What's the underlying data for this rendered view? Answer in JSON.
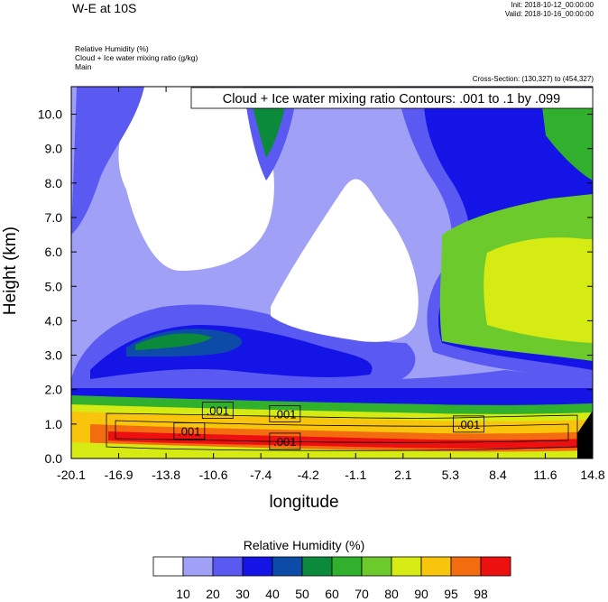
{
  "header": {
    "title": "W-E at 10S",
    "init": "Init: 2018-10-12_00:00:00",
    "valid": "Valid: 2018-10-16_00:00:00",
    "fields": [
      "Relative Humidity   (%)",
      "Cloud + Ice water mixing ratio   (g/kg)",
      "Main"
    ],
    "cross_section": "Cross-Section: (130,327) to (454,327)"
  },
  "chart_data": {
    "type": "heatmap",
    "title": "Cloud + Ice water mixing ratio Contours: .001 to .1 by .099",
    "xlabel": "longitude",
    "ylabel": "Height (km)",
    "x_ticks": [
      "-20.1",
      "-16.9",
      "-13.8",
      "-10.6",
      "-7.4",
      "-4.2",
      "-1.1",
      "2.1",
      "5.3",
      "8.4",
      "11.6",
      "14.8"
    ],
    "y_ticks": [
      "0.0",
      "1.0",
      "2.0",
      "3.0",
      "4.0",
      "5.0",
      "6.0",
      "7.0",
      "8.0",
      "9.0",
      "10.0"
    ],
    "xlim": [
      -20.1,
      14.8
    ],
    "ylim": [
      0.0,
      10.8
    ],
    "contour_labels": [
      {
        "text": ".001",
        "lon": -12.2,
        "h": 0.8
      },
      {
        "text": ".001",
        "lon": -10.3,
        "h": 1.4
      },
      {
        "text": ".001",
        "lon": -5.8,
        "h": 1.3
      },
      {
        "text": ".001",
        "lon": -5.8,
        "h": 0.5
      },
      {
        "text": ".001",
        "lon": 6.5,
        "h": 1.0
      }
    ],
    "legend": {
      "title": "Relative Humidity  (%)",
      "levels": [
        "10",
        "20",
        "30",
        "40",
        "50",
        "60",
        "70",
        "80",
        "90",
        "95",
        "98"
      ],
      "colors": [
        "#ffffff",
        "#a0a0f6",
        "#5a5af2",
        "#1414e6",
        "#0c4ca8",
        "#0c8a3c",
        "#30b02c",
        "#6cca2c",
        "#d6ea14",
        "#f8c40c",
        "#f46c10",
        "#ec1010"
      ]
    }
  }
}
